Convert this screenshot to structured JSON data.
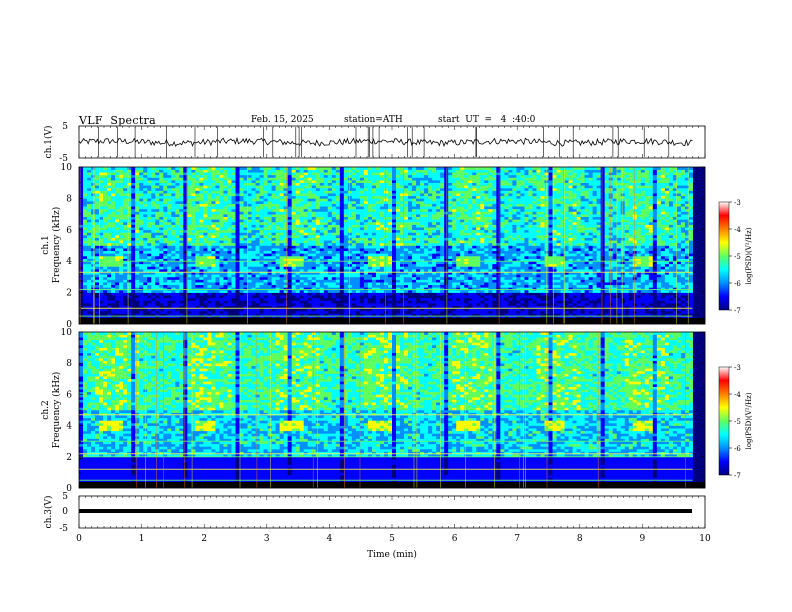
{
  "header": {
    "title": "VLF  Spectra",
    "date": "Feb. 15, 2025",
    "station": "station=ATH",
    "start_ut": "start  UT  =   4  :40:0"
  },
  "colors": {
    "frame": "#000000",
    "spectrogram_low": "#000080",
    "spectrogram_high": "#e00000"
  },
  "colormap_stops": [
    "#00007f",
    "#0000ff",
    "#0090ff",
    "#00ffff",
    "#60ff60",
    "#ffff00",
    "#ff8000",
    "#ff0000",
    "#ffffff"
  ],
  "chart_data": [
    {
      "type": "line",
      "ylabel": "ch.1(V)",
      "xlim": [
        0,
        10
      ],
      "ylim": [
        -5,
        5
      ],
      "yticks": [
        "5",
        "-5"
      ],
      "series": [
        {
          "baseline": 0,
          "amplitude_approx": 1.0,
          "spikes": true
        }
      ]
    },
    {
      "type": "heatmap",
      "ylabel_line1": "ch.1",
      "ylabel_line2": "Frequency  (kHz)",
      "xlim": [
        0,
        10
      ],
      "ylim": [
        0,
        10
      ],
      "yticks": [
        "0",
        "2",
        "4",
        "6",
        "8",
        "10"
      ],
      "colorbar": {
        "label": "log(PSD)(V²/Hz)",
        "ticks": [
          "-3",
          "-4",
          "-5",
          "-6",
          "-7"
        ],
        "range": [
          -7,
          -3
        ]
      },
      "bursts_time_min": [
        0.3,
        1.8,
        3.2,
        4.6,
        6.0,
        7.4,
        8.8
      ],
      "burst_band_khz": [
        3.6,
        4.4
      ],
      "lines_khz": [
        0.5,
        1.0,
        2.2,
        3.3,
        4.0
      ]
    },
    {
      "type": "heatmap",
      "ylabel_line1": "ch.2",
      "ylabel_line2": "Frequency  (kHz)",
      "xlim": [
        0,
        10
      ],
      "ylim": [
        0,
        10
      ],
      "yticks": [
        "0",
        "2",
        "4",
        "6",
        "8",
        "10"
      ],
      "colorbar": {
        "label": "log(PSD)(V²/Hz)",
        "ticks": [
          "-3",
          "-4",
          "-5",
          "-6",
          "-7"
        ],
        "range": [
          -7,
          -3
        ]
      },
      "bursts_time_min": [
        0.3,
        1.8,
        3.2,
        4.6,
        6.0,
        7.4,
        8.8
      ],
      "burst_band_khz": [
        3.6,
        4.4
      ],
      "lines_khz": [
        0.5,
        1.2,
        2.0,
        2.2,
        3.0,
        4.7
      ]
    },
    {
      "type": "line",
      "ylabel": "ch.3(V)",
      "xlabel": "Time  (min)",
      "xlim": [
        0,
        10
      ],
      "ylim": [
        -5,
        5
      ],
      "yticks": [
        "5",
        "0",
        "-5"
      ],
      "xticks": [
        "0",
        "1",
        "2",
        "3",
        "4",
        "5",
        "6",
        "7",
        "8",
        "9",
        "10"
      ],
      "series": [
        {
          "baseline": -1.5,
          "amplitude_approx": 0.2,
          "spikes": false
        }
      ]
    }
  ]
}
